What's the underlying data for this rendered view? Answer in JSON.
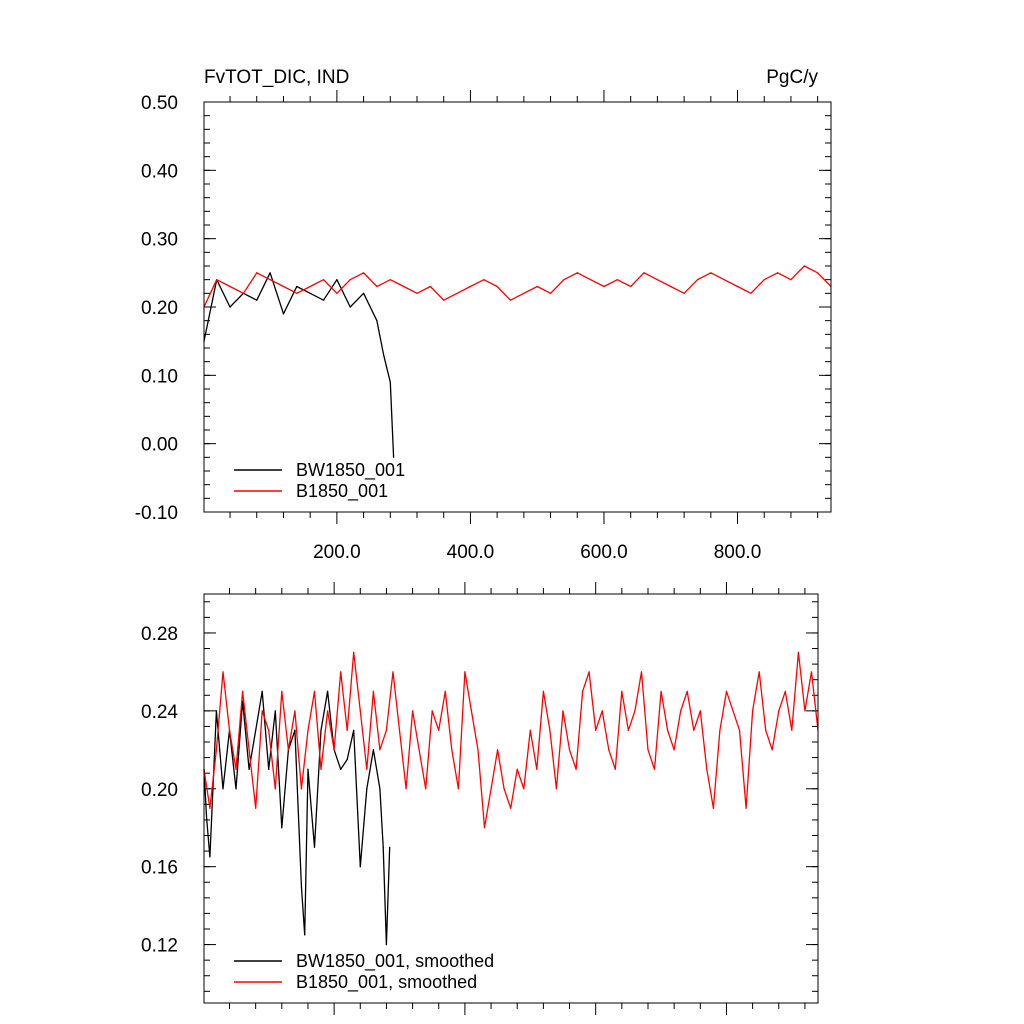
{
  "chart_data": [
    {
      "type": "line",
      "title_left": "FvTOT_DIC, IND",
      "title_right": "PgC/y",
      "xlim": [
        1,
        940
      ],
      "ylim": [
        -0.1,
        0.5
      ],
      "xticks": [
        200,
        400,
        600,
        800
      ],
      "xtick_labels": [
        "200.0",
        "400.0",
        "600.0",
        "800.0"
      ],
      "yticks": [
        -0.1,
        0.0,
        0.1,
        0.2,
        0.3,
        0.4,
        0.5
      ],
      "ytick_labels": [
        "-0.10",
        "0.00",
        "0.10",
        "0.20",
        "0.30",
        "0.40",
        "0.50"
      ],
      "legend_position": "bottom-left",
      "series": [
        {
          "name": "BW1850_001",
          "color": "#000000",
          "x": [
            1,
            20,
            40,
            60,
            80,
            100,
            120,
            140,
            160,
            180,
            200,
            220,
            240,
            260,
            270,
            280,
            285
          ],
          "values": [
            0.15,
            0.24,
            0.2,
            0.22,
            0.21,
            0.25,
            0.19,
            0.23,
            0.22,
            0.21,
            0.24,
            0.2,
            0.22,
            0.18,
            0.13,
            0.09,
            -0.02
          ]
        },
        {
          "name": "B1850_001",
          "color": "#ff0000",
          "x": [
            1,
            20,
            40,
            60,
            80,
            100,
            120,
            140,
            160,
            180,
            200,
            220,
            240,
            260,
            280,
            300,
            320,
            340,
            360,
            380,
            400,
            420,
            440,
            460,
            480,
            500,
            520,
            540,
            560,
            580,
            600,
            620,
            640,
            660,
            680,
            700,
            720,
            740,
            760,
            780,
            800,
            820,
            840,
            860,
            880,
            900,
            920,
            940
          ],
          "values": [
            0.2,
            0.24,
            0.23,
            0.22,
            0.25,
            0.24,
            0.23,
            0.22,
            0.23,
            0.24,
            0.22,
            0.24,
            0.25,
            0.23,
            0.24,
            0.23,
            0.22,
            0.23,
            0.21,
            0.22,
            0.23,
            0.24,
            0.23,
            0.21,
            0.22,
            0.23,
            0.22,
            0.24,
            0.25,
            0.24,
            0.23,
            0.24,
            0.23,
            0.25,
            0.24,
            0.23,
            0.22,
            0.24,
            0.25,
            0.24,
            0.23,
            0.22,
            0.24,
            0.25,
            0.24,
            0.26,
            0.25,
            0.23
          ]
        }
      ]
    },
    {
      "type": "line",
      "xlim": [
        1,
        940
      ],
      "ylim": [
        0.09,
        0.3
      ],
      "yticks": [
        0.12,
        0.16,
        0.2,
        0.24,
        0.28
      ],
      "ytick_labels": [
        "0.12",
        "0.16",
        "0.20",
        "0.24",
        "0.28"
      ],
      "legend_position": "bottom-left",
      "series": [
        {
          "name": "BW1850_001, smoothed",
          "color": "#000000",
          "x": [
            1,
            5,
            10,
            20,
            30,
            40,
            50,
            60,
            70,
            80,
            90,
            100,
            110,
            120,
            130,
            140,
            150,
            155,
            160,
            170,
            180,
            190,
            200,
            210,
            220,
            230,
            240,
            250,
            260,
            270,
            275,
            280,
            285
          ],
          "values": [
            0.21,
            0.185,
            0.165,
            0.24,
            0.2,
            0.23,
            0.2,
            0.245,
            0.21,
            0.23,
            0.25,
            0.21,
            0.24,
            0.18,
            0.22,
            0.23,
            0.15,
            0.125,
            0.21,
            0.17,
            0.23,
            0.25,
            0.22,
            0.21,
            0.215,
            0.23,
            0.16,
            0.2,
            0.22,
            0.2,
            0.17,
            0.12,
            0.17
          ]
        },
        {
          "name": "B1850_001, smoothed",
          "color": "#ff0000",
          "x": [
            1,
            10,
            20,
            30,
            40,
            50,
            60,
            70,
            80,
            90,
            100,
            110,
            120,
            130,
            140,
            150,
            160,
            170,
            180,
            190,
            200,
            210,
            220,
            230,
            240,
            250,
            260,
            270,
            280,
            290,
            300,
            310,
            320,
            330,
            340,
            350,
            360,
            370,
            380,
            390,
            400,
            410,
            420,
            430,
            440,
            450,
            460,
            470,
            480,
            490,
            500,
            510,
            520,
            530,
            540,
            550,
            560,
            570,
            580,
            590,
            600,
            610,
            620,
            630,
            640,
            650,
            660,
            670,
            680,
            690,
            700,
            710,
            720,
            730,
            740,
            750,
            760,
            770,
            780,
            790,
            800,
            810,
            820,
            830,
            840,
            850,
            860,
            870,
            880,
            890,
            900,
            910,
            920,
            930,
            940
          ],
          "values": [
            0.21,
            0.19,
            0.22,
            0.26,
            0.23,
            0.21,
            0.25,
            0.22,
            0.19,
            0.24,
            0.23,
            0.2,
            0.25,
            0.22,
            0.24,
            0.2,
            0.23,
            0.25,
            0.21,
            0.24,
            0.22,
            0.26,
            0.23,
            0.27,
            0.24,
            0.21,
            0.25,
            0.22,
            0.23,
            0.26,
            0.23,
            0.2,
            0.24,
            0.22,
            0.2,
            0.24,
            0.23,
            0.25,
            0.22,
            0.2,
            0.26,
            0.24,
            0.22,
            0.18,
            0.2,
            0.22,
            0.2,
            0.19,
            0.21,
            0.2,
            0.23,
            0.21,
            0.25,
            0.23,
            0.2,
            0.24,
            0.22,
            0.21,
            0.25,
            0.26,
            0.23,
            0.24,
            0.22,
            0.21,
            0.25,
            0.23,
            0.24,
            0.26,
            0.22,
            0.21,
            0.25,
            0.23,
            0.22,
            0.24,
            0.25,
            0.23,
            0.24,
            0.21,
            0.19,
            0.23,
            0.25,
            0.24,
            0.23,
            0.19,
            0.24,
            0.26,
            0.23,
            0.22,
            0.24,
            0.25,
            0.23,
            0.27,
            0.24,
            0.26,
            0.23
          ]
        }
      ]
    }
  ]
}
